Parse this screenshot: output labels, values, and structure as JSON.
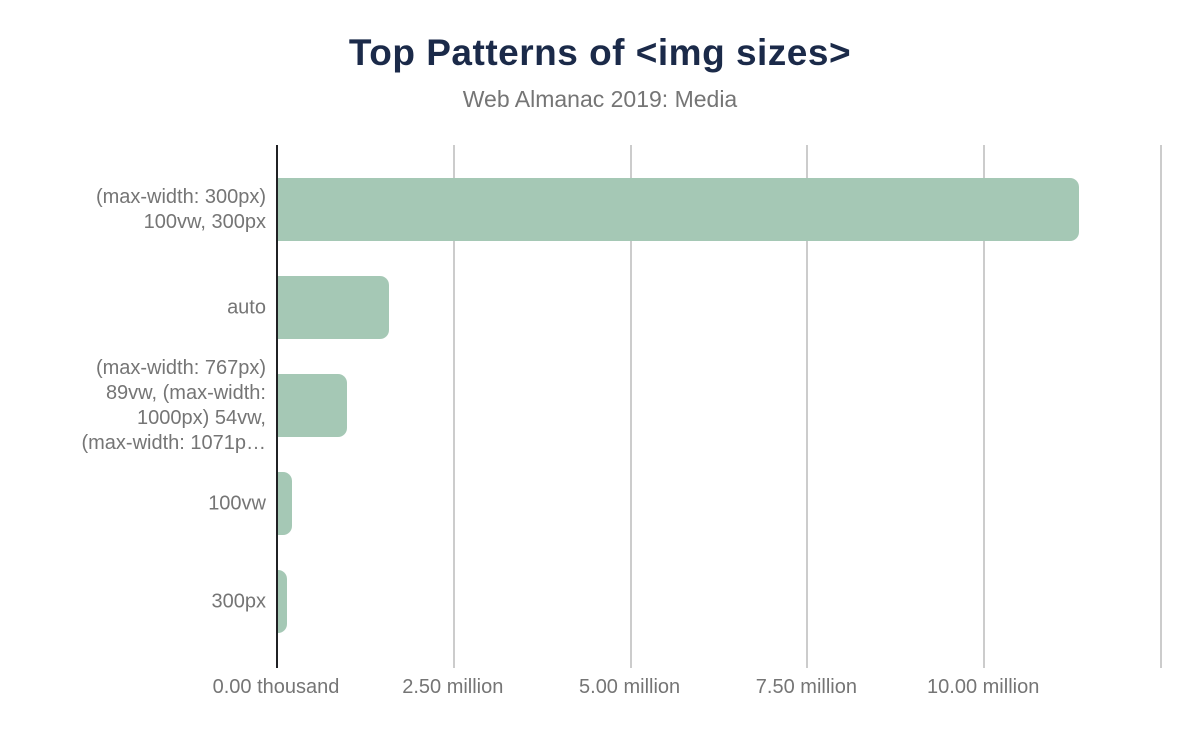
{
  "header": {
    "title": "Top Patterns of <img sizes>",
    "subtitle": "Web Almanac 2019: Media"
  },
  "colors": {
    "background": "#ffffff",
    "title": "#1b2a49",
    "subtitle": "#757575",
    "bar": "#a5c8b5",
    "axis_line": "#202124",
    "gridline": "#cccccc",
    "axis_text": "#757575"
  },
  "chart_data": {
    "type": "bar",
    "orientation": "horizontal",
    "title": "Top Patterns of <img sizes>",
    "subtitle": "Web Almanac 2019: Media",
    "categories": [
      "(max-width: 300px) 100vw, 300px",
      "auto",
      "(max-width: 767px) 89vw, (max-width: 1000px) 54vw, (max-width: 1071p…",
      "100vw",
      "300px"
    ],
    "category_label_lines": [
      [
        "(max-width: 300px)",
        "100vw, 300px"
      ],
      [
        "auto"
      ],
      [
        "(max-width: 767px)",
        "89vw, (max-width:",
        "1000px) 54vw,",
        "(max-width: 1071p…"
      ],
      [
        "100vw"
      ],
      [
        "300px"
      ]
    ],
    "values": [
      11330000,
      1570000,
      980000,
      200000,
      130000
    ],
    "xlabel": "",
    "ylabel": "",
    "xlim": [
      0,
      12500000
    ],
    "x_ticks": [
      {
        "value": 0,
        "label": "0.00 thousand"
      },
      {
        "value": 2500000,
        "label": "2.50 million"
      },
      {
        "value": 5000000,
        "label": "5.00 million"
      },
      {
        "value": 7500000,
        "label": "7.50 million"
      },
      {
        "value": 10000000,
        "label": "10.00 million"
      }
    ],
    "gridline_values": [
      2500000,
      5000000,
      7500000,
      10000000,
      12500000
    ],
    "grid": true,
    "legend": false
  }
}
